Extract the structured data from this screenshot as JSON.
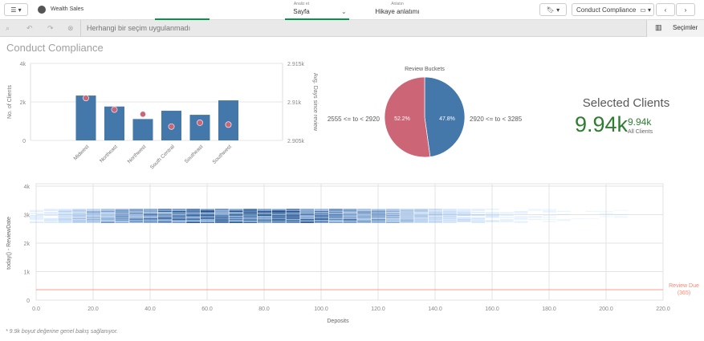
{
  "app": {
    "title": "Wealth Sales",
    "menu_icon": "hamburger-icon",
    "logo_icon": "qlik-logo-icon"
  },
  "nav": {
    "analyze_small": "Analiz et",
    "analyze": "Sayfa",
    "narrate_small": "Anlatın",
    "narrate": "Hikaye anlatımı"
  },
  "right": {
    "bookmark_icon": "bookmark-icon",
    "sheet": "Conduct Compliance",
    "sheet_icon": "sheet-icon",
    "prev": "‹",
    "next": "›"
  },
  "selections": {
    "empty": "Herhangi bir seçim uygulanmadı",
    "button": "Seçimler"
  },
  "sheet_title": "Conduct Compliance",
  "footnote": "* 9.9k boyut değerine genel bakış sağlanıyor.",
  "kpi": {
    "title": "Selected Clients",
    "value": "9.94k",
    "secondary": "9.94k",
    "secondary_label": "All Clients",
    "color": "#2e7d32"
  },
  "chart_data": [
    {
      "type": "bar",
      "categories": [
        "Midwest",
        "Northeast",
        "Northwest",
        "South Central",
        "Southeast",
        "Southwest"
      ],
      "series": [
        {
          "name": "No. of Clients",
          "values": [
            2330,
            1760,
            1110,
            1540,
            1330,
            2080
          ],
          "color": "#4477aa"
        },
        {
          "name": "Avg. Days since review",
          "type": "scatter",
          "axis": "right",
          "values": [
            2910.5,
            2909.0,
            2908.4,
            2906.8,
            2907.3,
            2907.05
          ],
          "color": "#cc6677"
        }
      ],
      "ylabel": "No. of Clients",
      "ylabel_right": "Avg. Days since review",
      "ylim": [
        0,
        4000
      ],
      "ylim_right": [
        2905,
        2915
      ],
      "yticks": [
        "0",
        "2k",
        "4k"
      ],
      "yticks_right": [
        "2.905k",
        "2.91k",
        "2.915k"
      ],
      "grid": true
    },
    {
      "type": "pie",
      "title": "Review Buckets",
      "slices": [
        {
          "label": "2920 <= to < 3285",
          "value": 47.8,
          "pct": "47.8%",
          "color": "#4477aa"
        },
        {
          "label": "2555 <= to < 2920",
          "value": 52.2,
          "pct": "52.2%",
          "color": "#cc6677"
        }
      ]
    },
    {
      "type": "heatmap",
      "xlabel": "Deposits",
      "ylabel": "today() - ReviewDate",
      "xlim": [
        0,
        220
      ],
      "ylim": [
        0,
        4000
      ],
      "xticks": [
        "0.0",
        "20.0",
        "40.0",
        "60.0",
        "80.0",
        "100.0",
        "120.0",
        "140.0",
        "160.0",
        "180.0",
        "200.0",
        "220.0"
      ],
      "yticks": [
        "0",
        "1k",
        "2k",
        "3k",
        "4k"
      ],
      "y_band": [
        2700,
        3200
      ],
      "x_bin_centers": [
        0,
        5,
        10,
        15,
        20,
        25,
        30,
        35,
        40,
        45,
        50,
        55,
        60,
        65,
        70,
        75,
        80,
        85,
        90,
        95,
        100,
        105,
        110,
        115,
        120,
        125,
        130,
        135,
        140,
        145,
        150,
        155,
        160,
        165,
        170,
        175,
        180,
        185,
        190,
        195,
        200,
        205
      ],
      "density": [
        0.15,
        0.2,
        0.3,
        0.45,
        0.55,
        0.6,
        0.65,
        0.7,
        0.75,
        0.8,
        0.85,
        0.88,
        0.9,
        0.92,
        0.93,
        0.93,
        0.92,
        0.9,
        0.88,
        0.85,
        0.8,
        0.75,
        0.7,
        0.65,
        0.6,
        0.55,
        0.5,
        0.42,
        0.35,
        0.3,
        0.26,
        0.22,
        0.18,
        0.12,
        0.1,
        0.08,
        0.06,
        0.05,
        0.04,
        0.03,
        0.03,
        0.02
      ],
      "reference_line": {
        "label": "Review Due",
        "value_label": "(365)",
        "value": 365,
        "color": "#fa8872"
      },
      "grid": true
    }
  ]
}
